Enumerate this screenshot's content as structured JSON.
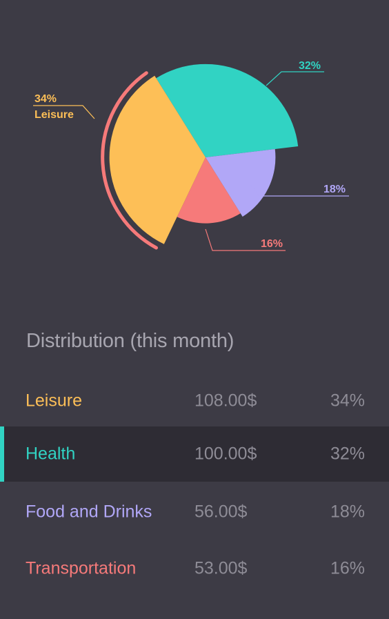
{
  "chart_data": {
    "type": "pie",
    "slices": [
      {
        "label": "Health",
        "value": 32,
        "color": "#31d3c3"
      },
      {
        "label": "Food and Drinks",
        "value": 18,
        "color": "#b1a7f7"
      },
      {
        "label": "Transportation",
        "value": 16,
        "color": "#f67a7a"
      },
      {
        "label": "Leisure",
        "value": 34,
        "color": "#fdbf57"
      }
    ],
    "annotations": [
      {
        "for": "Health",
        "text": "32%"
      },
      {
        "for": "Food and Drinks",
        "text": "18%"
      },
      {
        "for": "Transportation",
        "text": "16%"
      },
      {
        "for": "Leisure",
        "text": "34%",
        "sublabel": "Leisure"
      }
    ],
    "highlighted": "Leisure"
  },
  "distribution": {
    "title": "Distribution (this month)",
    "selected": "Health",
    "rows": [
      {
        "name": "Leisure",
        "amount": "108.00$",
        "percent": "34%",
        "color": "#fdbf57"
      },
      {
        "name": "Health",
        "amount": "100.00$",
        "percent": "32%",
        "color": "#31d3c3"
      },
      {
        "name": "Food and Drinks",
        "amount": "56.00$",
        "percent": "18%",
        "color": "#b1a7f7"
      },
      {
        "name": "Transportation",
        "amount": "53.00$",
        "percent": "16%",
        "color": "#f67a7a"
      }
    ]
  }
}
